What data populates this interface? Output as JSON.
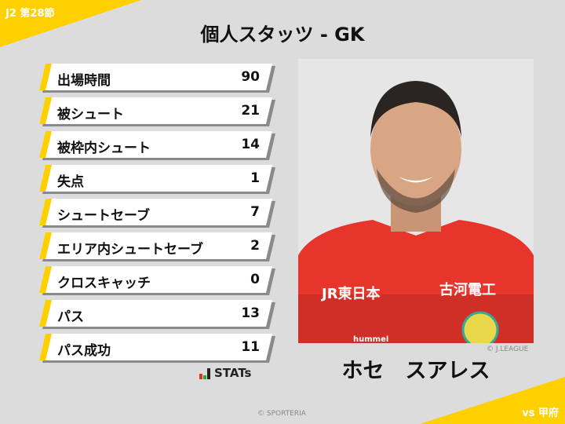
{
  "header": {
    "round": "J2 第28節",
    "title": "個人スタッツ - GK",
    "opponent": "vs 甲府"
  },
  "stats": [
    {
      "label": "出場時間",
      "value": "90"
    },
    {
      "label": "被シュート",
      "value": "21"
    },
    {
      "label": "被枠内シュート",
      "value": "14"
    },
    {
      "label": "失点",
      "value": "1"
    },
    {
      "label": "シュートセーブ",
      "value": "7"
    },
    {
      "label": "エリア内シュートセーブ",
      "value": "2"
    },
    {
      "label": "クロスキャッチ",
      "value": "0"
    },
    {
      "label": "パス",
      "value": "13"
    },
    {
      "label": "パス成功",
      "value": "11"
    }
  ],
  "logo": {
    "text": "STATs"
  },
  "player": {
    "name": "ホセ　スアレス",
    "photo_credit": "© J.LEAGUE",
    "shirt_text_left": "JR東日本",
    "shirt_text_right": "古河電工",
    "shirt_brand": "hummel"
  },
  "footer": {
    "copyright": "© SPORTERIA"
  },
  "colors": {
    "accent": "#ffd000",
    "background": "#dcdcdc",
    "shirt": "#e8352c"
  }
}
